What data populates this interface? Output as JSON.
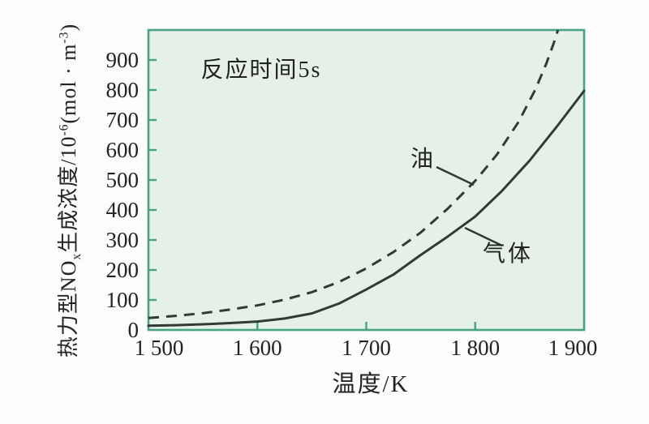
{
  "chart_data": {
    "type": "line",
    "title": "",
    "annotation": "反应时间5s",
    "xlabel": "温度/K",
    "ylabel": "热力型NOx生成浓度/10-6(mol · m-3)",
    "ylabel_parts": {
      "base1": "热力型NO",
      "sub1": "x",
      "base2": "生成浓度/10",
      "sup1": "-6",
      "base3": "(mol · m",
      "sup2": "-3",
      "base4": ")"
    },
    "xlim": [
      1500,
      1900
    ],
    "ylim": [
      0,
      1000
    ],
    "x_ticks": [
      1500,
      1600,
      1700,
      1800,
      1900
    ],
    "x_tick_labels": [
      "1 500",
      "1 600",
      "1 700",
      "1 800",
      "1 900"
    ],
    "y_ticks": [
      0,
      100,
      200,
      300,
      400,
      500,
      600,
      700,
      800,
      900
    ],
    "y_tick_labels": [
      "0",
      "100",
      "200",
      "300",
      "400",
      "500",
      "600",
      "700",
      "800",
      "900"
    ],
    "grid": false,
    "legend_position": "inline-callouts",
    "series": [
      {
        "name": "油",
        "line_style": "dashed",
        "x": [
          1500,
          1525,
          1550,
          1575,
          1600,
          1625,
          1650,
          1675,
          1700,
          1725,
          1750,
          1775,
          1800,
          1820,
          1840,
          1855,
          1865,
          1872,
          1876
        ],
        "y": [
          40,
          47,
          56,
          68,
          82,
          101,
          126,
          160,
          205,
          260,
          325,
          405,
          497,
          585,
          695,
          800,
          885,
          955,
          1000
        ]
      },
      {
        "name": "气体",
        "line_style": "solid",
        "x": [
          1500,
          1525,
          1550,
          1575,
          1600,
          1625,
          1650,
          1675,
          1700,
          1725,
          1750,
          1775,
          1800,
          1825,
          1850,
          1875,
          1900
        ],
        "y": [
          14,
          16,
          19,
          23,
          28,
          38,
          55,
          88,
          135,
          185,
          250,
          312,
          378,
          465,
          565,
          678,
          797
        ]
      }
    ]
  },
  "colors": {
    "page_bg": "#fdfdfc",
    "plot_bg": "#e5f1e6",
    "plot_border": "#4ba184",
    "curve": "#323a34",
    "text": "#222222"
  }
}
